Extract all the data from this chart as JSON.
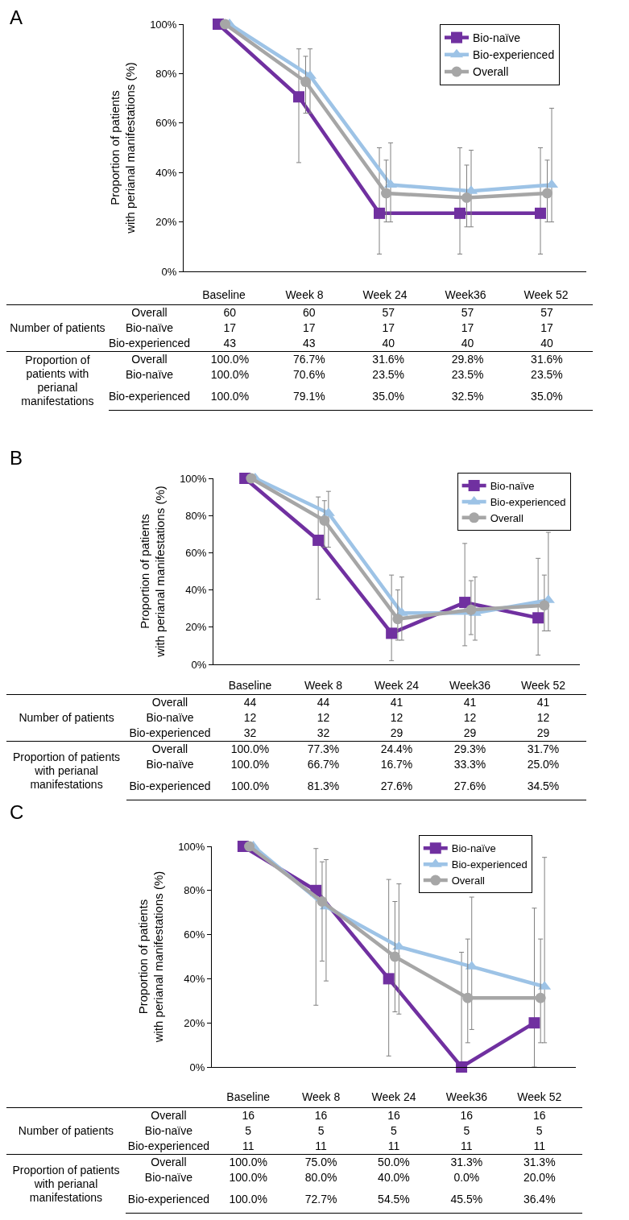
{
  "chart_data": [
    {
      "type": "line",
      "ylabel": "Proportion of patients\nwith perianal manifestations (%)",
      "categories": [
        "Baseline",
        "Week 8",
        "Week 24",
        "Week36",
        "Week 52"
      ],
      "ylim": [
        0,
        100
      ],
      "yticks": [
        {
          "value": 0,
          "label": "0%"
        },
        {
          "value": 20,
          "label": "20%"
        },
        {
          "value": 40,
          "label": "40%"
        },
        {
          "value": 60,
          "label": "60%"
        },
        {
          "value": 80,
          "label": "80%"
        },
        {
          "value": 100,
          "label": "100%"
        }
      ],
      "grid": false,
      "legend": "top right",
      "line_style": "solid",
      "series": [
        {
          "name": "Bio-naïve",
          "color": "#7030a0",
          "marker": "square",
          "values": [
            100,
            70.6,
            23.5,
            23.5,
            23.5
          ],
          "errors": [
            null,
            [
              44,
              90
            ],
            [
              7,
              50
            ],
            [
              7,
              50
            ],
            [
              7,
              50
            ]
          ],
          "value_labels": [
            "100.0%",
            "70.6%",
            "23.5%",
            "23.5%",
            "23.5%"
          ]
        },
        {
          "name": "Bio-experienced",
          "color": "#9dc3e6",
          "marker": "triangle",
          "values": [
            100,
            79.1,
            35.0,
            32.5,
            35.0
          ],
          "errors": [
            null,
            [
              64,
              90
            ],
            [
              20,
              52
            ],
            [
              18,
              49
            ],
            [
              20,
              66
            ]
          ],
          "value_labels": [
            "100.0%",
            "79.1%",
            "35.0%",
            "32.5%",
            "35.0%"
          ]
        },
        {
          "name": "Overall",
          "color": "#a6a6a6",
          "marker": "circle",
          "values": [
            100,
            76.7,
            31.6,
            29.8,
            31.6
          ],
          "errors": [
            null,
            [
              64,
              87
            ],
            [
              20,
              45
            ],
            [
              18,
              43
            ],
            [
              20,
              45
            ]
          ],
          "value_labels": [
            "100.0%",
            "76.7%",
            "31.6%",
            "29.8%",
            "31.6%"
          ]
        }
      ],
      "annotations": [
        "A",
        "Number of patients",
        "Proportion of patients with perianal manifestations",
        "60",
        "17",
        "43",
        "60",
        "17",
        "43",
        "57",
        "17",
        "40",
        "57",
        "17",
        "40",
        "57",
        "17",
        "40"
      ]
    },
    {
      "type": "line",
      "ylabel": "Proportion of patients\nwith perianal manifestations (%)",
      "categories": [
        "Baseline",
        "Week 8",
        "Week 24",
        "Week36",
        "Week 52"
      ],
      "ylim": [
        0,
        100
      ],
      "yticks": [
        {
          "value": 0,
          "label": "0%"
        },
        {
          "value": 20,
          "label": "20%"
        },
        {
          "value": 40,
          "label": "40%"
        },
        {
          "value": 60,
          "label": "60%"
        },
        {
          "value": 80,
          "label": "80%"
        },
        {
          "value": 100,
          "label": "100%"
        }
      ],
      "grid": false,
      "legend": "top right",
      "line_style": "solid",
      "series": [
        {
          "name": "Bio-naïve",
          "color": "#7030a0",
          "marker": "square",
          "values": [
            100,
            66.7,
            16.7,
            33.3,
            25.0
          ],
          "errors": [
            null,
            [
              35,
              90
            ],
            [
              2,
              48
            ],
            [
              10,
              65
            ],
            [
              5,
              57
            ]
          ],
          "value_labels": [
            "100.0%",
            "66.7%",
            "16.7%",
            "33.3%",
            "25.0%"
          ]
        },
        {
          "name": "Bio-experienced",
          "color": "#9dc3e6",
          "marker": "triangle",
          "values": [
            100,
            81.3,
            27.6,
            27.6,
            34.5
          ],
          "errors": [
            null,
            [
              63,
              93
            ],
            [
              13,
              47
            ],
            [
              13,
              47
            ],
            [
              18,
              71
            ]
          ],
          "value_labels": [
            "100.0%",
            "81.3%",
            "27.6%",
            "27.6%",
            "34.5%"
          ]
        },
        {
          "name": "Overall",
          "color": "#a6a6a6",
          "marker": "circle",
          "values": [
            100,
            77.3,
            24.4,
            29.3,
            31.7
          ],
          "errors": [
            null,
            [
              63,
              88
            ],
            [
              13,
              40
            ],
            [
              16,
              45
            ],
            [
              18,
              48
            ]
          ],
          "value_labels": [
            "100.0%",
            "77.3%",
            "24.4%",
            "29.3%",
            "31.7%"
          ]
        }
      ],
      "annotations": [
        "B",
        "Number of patients",
        "Proportion of patients with perianal manifestations",
        "44",
        "12",
        "32",
        "44",
        "12",
        "32",
        "41",
        "12",
        "29",
        "41",
        "12",
        "29",
        "41",
        "12",
        "29"
      ]
    },
    {
      "type": "line",
      "ylabel": "Proportion of patients\nwith perianal manifestations (%)",
      "categories": [
        "Baseline",
        "Week 8",
        "Week 24",
        "Week36",
        "Week 52"
      ],
      "ylim": [
        0,
        100
      ],
      "yticks": [
        {
          "value": 0,
          "label": "0%"
        },
        {
          "value": 20,
          "label": "20%"
        },
        {
          "value": 40,
          "label": "40%"
        },
        {
          "value": 60,
          "label": "60%"
        },
        {
          "value": 80,
          "label": "80%"
        },
        {
          "value": 100,
          "label": "100%"
        }
      ],
      "grid": false,
      "legend": "top right",
      "line_style": "solid",
      "series": [
        {
          "name": "Bio-naïve",
          "color": "#7030a0",
          "marker": "square",
          "values": [
            100,
            80.0,
            40.0,
            0.0,
            20.0
          ],
          "errors": [
            null,
            [
              28,
              99
            ],
            [
              5,
              85
            ],
            [
              0,
              52
            ],
            [
              0,
              72
            ]
          ],
          "value_labels": [
            "100.0%",
            "80.0%",
            "40.0%",
            "0.0%",
            "20.0%"
          ]
        },
        {
          "name": "Bio-experienced",
          "color": "#9dc3e6",
          "marker": "triangle",
          "values": [
            100,
            72.7,
            54.5,
            45.5,
            36.4
          ],
          "errors": [
            null,
            [
              39,
              94
            ],
            [
              24,
              83
            ],
            [
              17,
              77
            ],
            [
              11,
              95
            ]
          ],
          "value_labels": [
            "100.0%",
            "72.7%",
            "54.5%",
            "45.5%",
            "36.4%"
          ]
        },
        {
          "name": "Overall",
          "color": "#a6a6a6",
          "marker": "circle",
          "values": [
            100,
            75.0,
            50.0,
            31.3,
            31.3
          ],
          "errors": [
            null,
            [
              48,
              93
            ],
            [
              25,
              75
            ],
            [
              11,
              58
            ],
            [
              11,
              58
            ]
          ],
          "value_labels": [
            "100.0%",
            "75.0%",
            "50.0%",
            "31.3%",
            "31.3%"
          ]
        }
      ],
      "annotations": [
        "C",
        "Number of patients",
        "Proportion of patients with perianal manifestations",
        "16",
        "5",
        "11",
        "16",
        "5",
        "11",
        "16",
        "5",
        "11",
        "16",
        "5",
        "11",
        "16",
        "5",
        "11"
      ]
    }
  ]
}
